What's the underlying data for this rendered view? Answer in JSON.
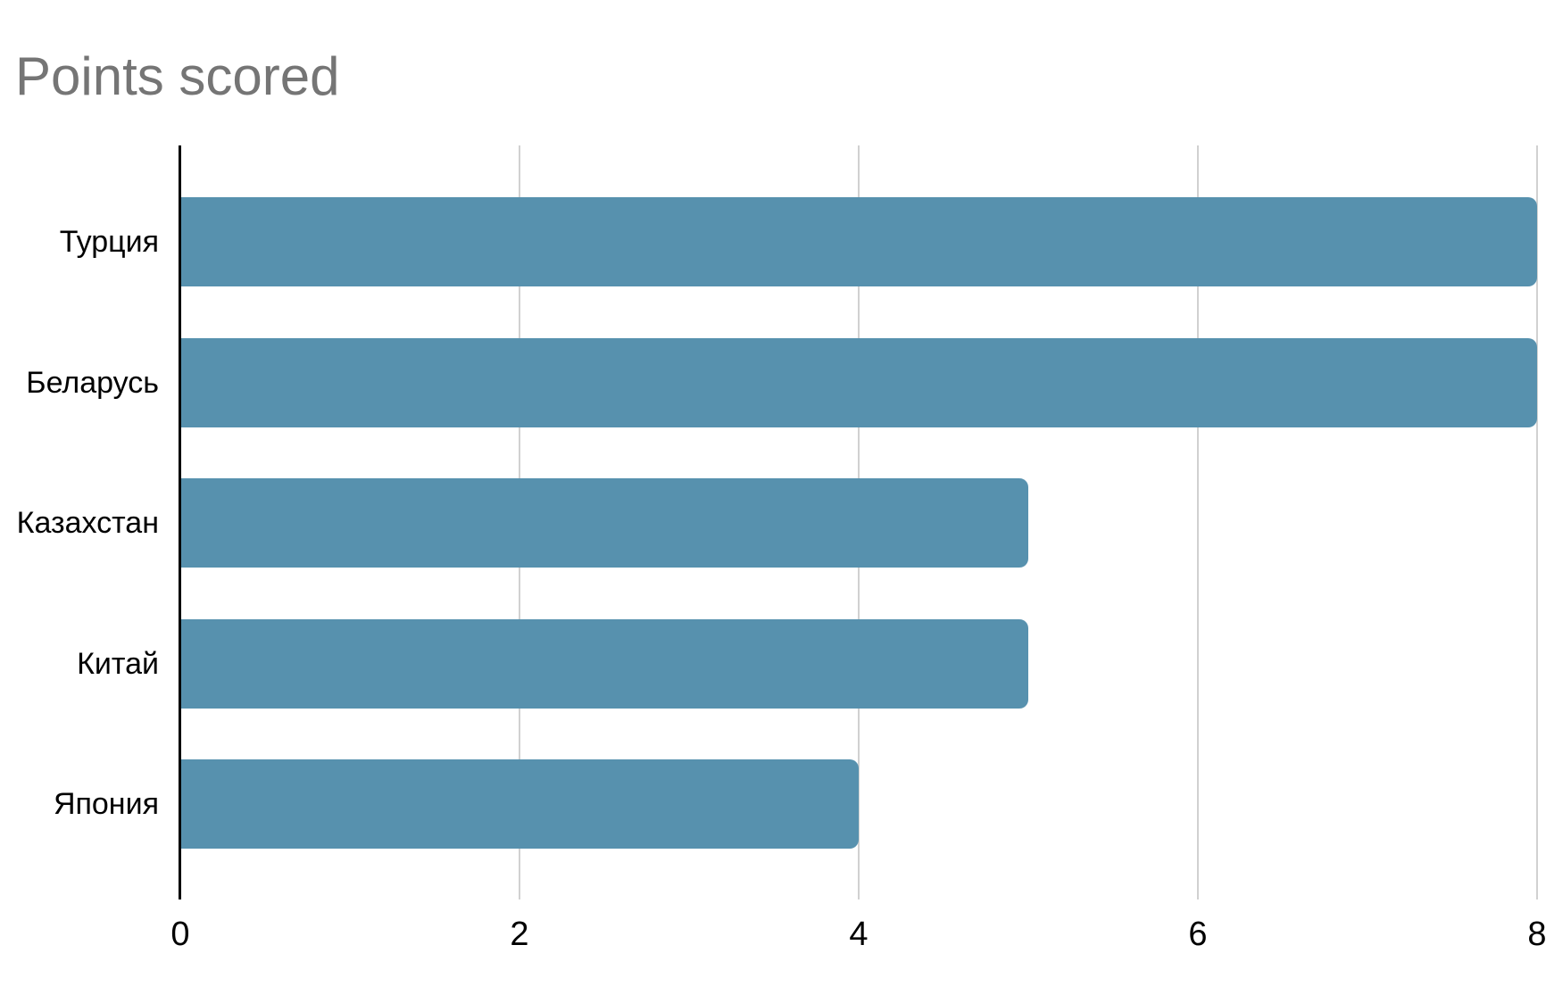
{
  "page": {
    "background": "#ffffff"
  },
  "chart_data": {
    "type": "bar",
    "orientation": "horizontal",
    "title": "Points scored",
    "categories": [
      "Турция",
      "Беларусь",
      "Казахстан",
      "Китай",
      "Япония"
    ],
    "values": [
      8,
      8,
      5,
      5,
      4
    ],
    "series": [
      {
        "name": "Points scored",
        "values": [
          8,
          8,
          5,
          5,
          4
        ]
      }
    ],
    "xlabel": "",
    "ylabel": "",
    "xlim": [
      0,
      8
    ],
    "x_ticks": [
      0,
      2,
      4,
      6,
      8
    ],
    "grid": true,
    "legend": "none",
    "colors": {
      "bar": "#5791ae",
      "title_text": "#757575",
      "axis_line": "#000000",
      "gridline": "#d1d1d1",
      "tick_label_text": "#000000",
      "category_label_text": "#000000",
      "background": "#ffffff"
    }
  }
}
